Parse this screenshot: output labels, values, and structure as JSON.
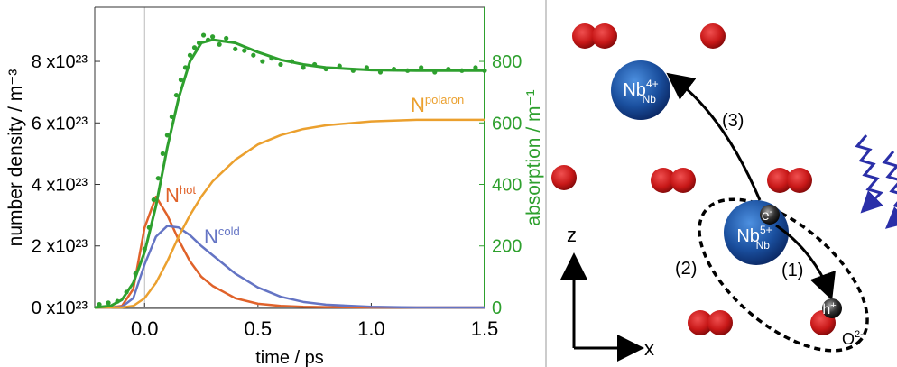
{
  "chart_data": {
    "type": "line",
    "x_label": "time / ps",
    "y_label": "number density / m⁻³",
    "y2_label": "absorption / m⁻¹",
    "xlim": [
      -0.22,
      1.5
    ],
    "xticks": [
      {
        "value": 0,
        "label": "0.0"
      },
      0.5,
      {
        "value": 1,
        "label": "1.0"
      },
      1.5
    ],
    "ylim": [
      -3e+21,
      9.76e+23
    ],
    "yticks": [
      {
        "value": 0,
        "label": "0 x10²³"
      },
      {
        "value": 2e+23,
        "label": "2 x10²³"
      },
      {
        "value": 4e+23,
        "label": "4 x10²³"
      },
      {
        "value": 6e+23,
        "label": "6 x10²³"
      },
      {
        "value": 8e+23,
        "label": "8 x10²³"
      }
    ],
    "y2lim": [
      -3,
      976
    ],
    "y2ticks": [
      0,
      200,
      400,
      600,
      800
    ],
    "y2_color": "#2ea02e",
    "x": [
      -0.22,
      -0.15,
      -0.1,
      -0.05,
      0,
      0.05,
      0.1,
      0.15,
      0.2,
      0.25,
      0.3,
      0.4,
      0.5,
      0.6,
      0.7,
      0.8,
      1.0,
      1.2,
      1.5
    ],
    "series": [
      {
        "color": "#e0622a",
        "values": [
          0,
          0,
          5e+21,
          6e+22,
          2.6e+23,
          3.6e+23,
          3e+23,
          2.2e+23,
          1.5e+23,
          1e+23,
          7e+22,
          3e+22,
          1.2e+22,
          5e+21,
          2e+21,
          1e+21,
          0,
          0,
          0
        ]
      },
      {
        "color": "#6474c4",
        "values": [
          0,
          0,
          2e+21,
          3e+22,
          1.4e+23,
          2.3e+23,
          2.65e+23,
          2.6e+23,
          2.35e+23,
          2e+23,
          1.7e+23,
          1.1e+23,
          6.5e+22,
          3.5e+22,
          1.8e+22,
          9e+21,
          2e+21,
          0,
          0
        ]
      },
      {
        "color": "#eba02e",
        "values": [
          0,
          0,
          0,
          5e+21,
          3e+22,
          8e+22,
          1.5e+23,
          2.3e+23,
          3e+23,
          3.6e+23,
          4.1e+23,
          4.8e+23,
          5.3e+23,
          5.6e+23,
          5.8e+23,
          5.92e+23,
          6.05e+23,
          6.1e+23,
          6.1e+23
        ]
      },
      {
        "color": "#2ea02e",
        "axis": "y2",
        "values": [
          0,
          5,
          25,
          80,
          180,
          330,
          520,
          680,
          800,
          860,
          870,
          860,
          830,
          805,
          790,
          780,
          772,
          770,
          770
        ]
      },
      {
        "color": "#2ea02e",
        "axis": "y2",
        "mode": "markers",
        "x": [
          -0.2,
          -0.16,
          -0.12,
          -0.08,
          -0.04,
          0,
          0.02,
          0.04,
          0.06,
          0.08,
          0.1,
          0.12,
          0.14,
          0.16,
          0.18,
          0.2,
          0.22,
          0.24,
          0.26,
          0.28,
          0.3,
          0.33,
          0.36,
          0.4,
          0.44,
          0.48,
          0.52,
          0.56,
          0.6,
          0.65,
          0.7,
          0.75,
          0.8,
          0.86,
          0.92,
          0.98,
          1.04,
          1.1,
          1.16,
          1.22,
          1.28,
          1.34,
          1.4,
          1.46,
          1.5
        ],
        "values": [
          10,
          15,
          20,
          50,
          110,
          190,
          260,
          350,
          420,
          500,
          560,
          620,
          690,
          740,
          780,
          820,
          845,
          860,
          885,
          870,
          880,
          855,
          875,
          840,
          835,
          820,
          800,
          810,
          790,
          800,
          780,
          790,
          775,
          785,
          770,
          780,
          765,
          775,
          770,
          780,
          765,
          775,
          770,
          780,
          770
        ]
      }
    ],
    "annotations": [
      {
        "text": "N",
        "sup": "hot"
      },
      {
        "text": "N",
        "sup": "cold"
      },
      {
        "text": "N",
        "sup": "polaron"
      }
    ]
  },
  "diagram": {
    "ions": [
      {
        "base": "Nb",
        "sup": "4+",
        "sub": "Nb"
      },
      {
        "base": "Nb",
        "sup": "5+",
        "sub": "Nb"
      },
      {
        "base": "e",
        "sup": "-"
      },
      {
        "base": "h",
        "sup": "+"
      },
      {
        "base": "O",
        "sup": "2-"
      }
    ],
    "steps": [
      "(3)",
      "(2)",
      "(1)"
    ],
    "axes": [
      "z",
      "x"
    ]
  }
}
